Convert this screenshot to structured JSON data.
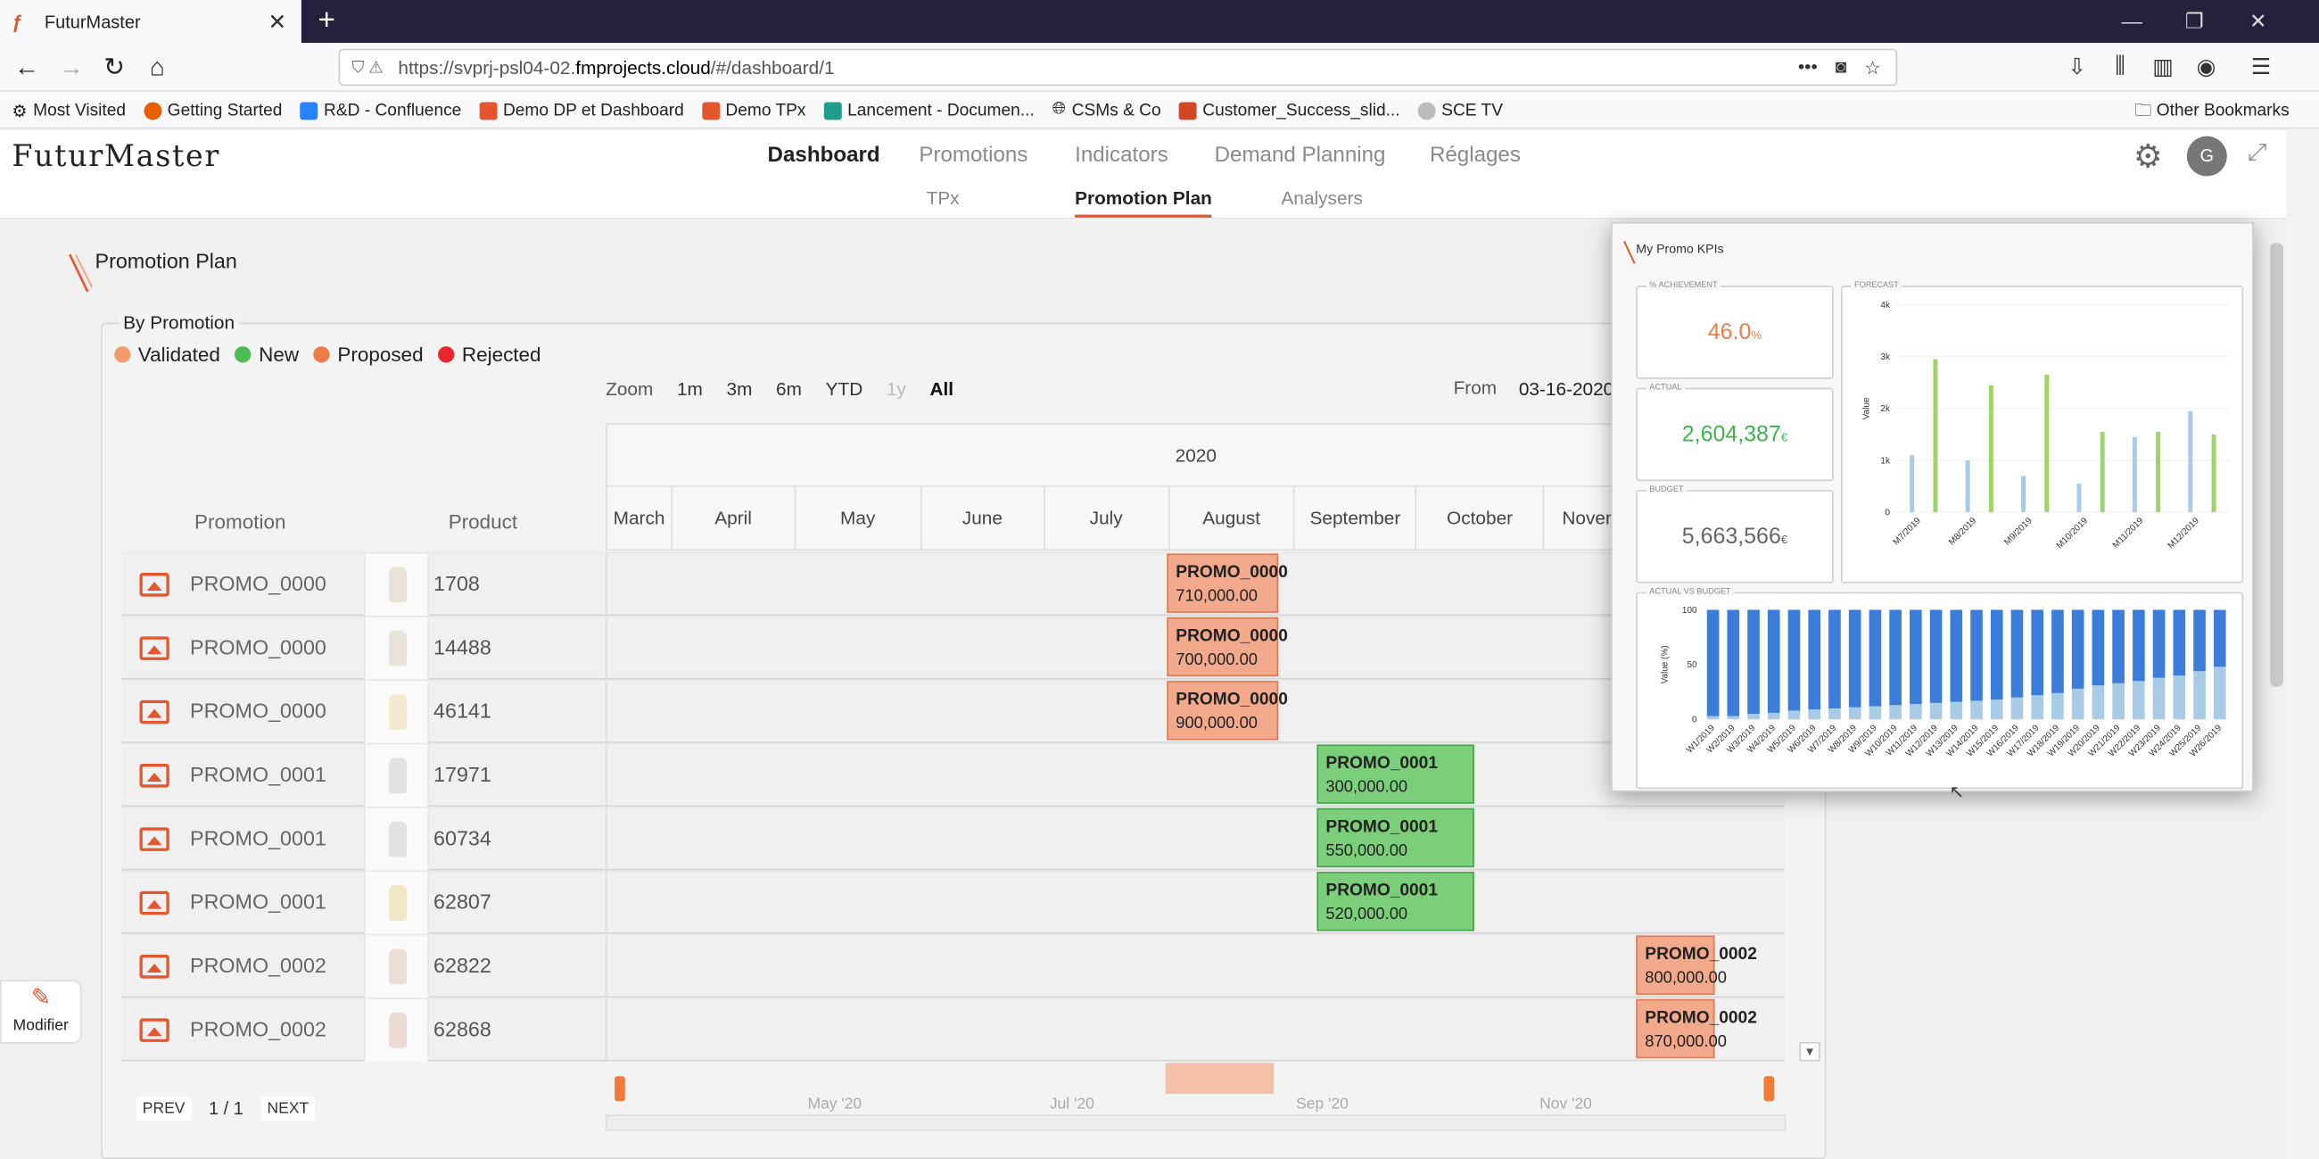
{
  "browser": {
    "tab_title": "FuturMaster",
    "url_prefix": "https://svprj-psl04-02.",
    "url_host": "fmprojects.cloud",
    "url_path": "/#/dashboard/1",
    "bookmarks": [
      "Most Visited",
      "Getting Started",
      "R&D - Confluence",
      "Demo DP et Dashboard",
      "Demo TPx",
      "Lancement - Documen...",
      "CSMs & Co",
      "Customer_Success_slid...",
      "SCE TV"
    ],
    "other_bookmarks": "Other Bookmarks"
  },
  "app": {
    "logo_prefix": "Futur",
    "logo_suffix": "Master",
    "nav": [
      "Dashboard",
      "Promotions",
      "Indicators",
      "Demand Planning",
      "Réglages"
    ],
    "active_nav": "Dashboard",
    "subnav": [
      "TPx",
      "Promotion Plan",
      "Analysers"
    ],
    "active_subnav": "Promotion Plan",
    "avatar": "G"
  },
  "plan": {
    "title": "Promotion Plan",
    "panel_title": "By Promotion",
    "legend": [
      {
        "label": "Validated",
        "color": "#f39c6b"
      },
      {
        "label": "New",
        "color": "#4cbb52"
      },
      {
        "label": "Proposed",
        "color": "#f07a4a"
      },
      {
        "label": "Rejected",
        "color": "#e8262b"
      }
    ],
    "zoom_label": "Zoom",
    "zoom": [
      "1m",
      "3m",
      "6m",
      "YTD",
      "1y",
      "All"
    ],
    "from_label": "From",
    "from_value": "03-16-2020",
    "col_promotion": "Promotion",
    "col_product": "Product",
    "year": "2020",
    "months": [
      "March",
      "April",
      "May",
      "June",
      "July",
      "August",
      "September",
      "October",
      "Nover"
    ],
    "rows": [
      {
        "promo": "PROMO_0000",
        "product": "1708"
      },
      {
        "promo": "PROMO_0000",
        "product": "14488"
      },
      {
        "promo": "PROMO_0000",
        "product": "46141"
      },
      {
        "promo": "PROMO_0001",
        "product": "17971"
      },
      {
        "promo": "PROMO_0001",
        "product": "60734"
      },
      {
        "promo": "PROMO_0001",
        "product": "62807"
      },
      {
        "promo": "PROMO_0002",
        "product": "62822"
      },
      {
        "promo": "PROMO_0002",
        "product": "62868"
      }
    ],
    "bars": [
      {
        "name": "PROMO_0000",
        "amount": "710,000.00",
        "status": "proposed"
      },
      {
        "name": "PROMO_0000",
        "amount": "700,000.00",
        "status": "proposed"
      },
      {
        "name": "PROMO_0000",
        "amount": "900,000.00",
        "status": "proposed"
      },
      {
        "name": "PROMO_0001",
        "amount": "300,000.00",
        "status": "new"
      },
      {
        "name": "PROMO_0001",
        "amount": "550,000.00",
        "status": "new"
      },
      {
        "name": "PROMO_0001",
        "amount": "520,000.00",
        "status": "new"
      },
      {
        "name": "PROMO_0002",
        "amount": "800,000.00",
        "status": "proposed"
      },
      {
        "name": "PROMO_0002",
        "amount": "870,000.00",
        "status": "proposed"
      }
    ],
    "navigator_labels": [
      "May '20",
      "Jul '20",
      "Sep '20",
      "Nov '20"
    ],
    "pager": {
      "prev": "PREV",
      "page": "1 / 1",
      "next": "NEXT"
    },
    "modifier": "Modifier"
  },
  "kpi": {
    "title": "My Promo KPIs",
    "achievement_label": "% ACHIEVEMENT",
    "achievement_value": "46.0",
    "achievement_unit": "%",
    "actual_label": "ACTUAL",
    "actual_value": "2,604,387",
    "actual_unit": "€",
    "budget_label": "BUDGET",
    "budget_value": "5,663,566",
    "budget_unit": "€",
    "colors": {
      "achievement": "#f07a4a",
      "actual": "#3db54a",
      "budget": "#666666"
    }
  },
  "chart_data": [
    {
      "type": "bar",
      "title": "FORECAST",
      "ylabel": "Value",
      "ylim": [
        0,
        4000
      ],
      "yticks": [
        "0",
        "1k",
        "2k",
        "3k",
        "4k"
      ],
      "categories": [
        "M7/2019",
        "M8/2019",
        "M9/2019",
        "M10/2019",
        "M11/2019",
        "M12/2019"
      ],
      "series": [
        {
          "color": "#a9cbe6",
          "values": [
            1100,
            1000,
            700,
            550,
            1450,
            1950
          ]
        },
        {
          "color": "#9fd46a",
          "values": [
            2950,
            2450,
            2650,
            1550,
            1550,
            1500
          ]
        }
      ]
    },
    {
      "type": "bar",
      "title": "ACTUAL VS BUDGET",
      "ylabel": "Value (%)",
      "ylim": [
        0,
        100
      ],
      "yticks": [
        "0",
        "50",
        "100"
      ],
      "categories": [
        "W1/2019",
        "W2/2019",
        "W3/2019",
        "W4/2019",
        "W5/2019",
        "W6/2019",
        "W7/2019",
        "W8/2019",
        "W9/2019",
        "W10/2019",
        "W11/2019",
        "W12/2019",
        "W13/2019",
        "W14/2019",
        "W15/2019",
        "W16/2019",
        "W17/2019",
        "W18/2019",
        "W19/2019",
        "W20/2019",
        "W21/2019",
        "W22/2019",
        "W23/2019",
        "W24/2019",
        "W25/2019",
        "W26/2019"
      ],
      "stacked": true,
      "series": [
        {
          "color": "#a9cbe6",
          "values": [
            3,
            3,
            5,
            6,
            8,
            9,
            10,
            11,
            12,
            13,
            14,
            15,
            16,
            17,
            18,
            20,
            22,
            24,
            28,
            31,
            33,
            35,
            38,
            40,
            44,
            48
          ]
        },
        {
          "color": "#3b7dd8",
          "values": [
            97,
            97,
            95,
            94,
            92,
            91,
            90,
            89,
            88,
            87,
            86,
            85,
            84,
            83,
            82,
            80,
            78,
            76,
            72,
            69,
            67,
            65,
            62,
            60,
            56,
            52
          ]
        }
      ]
    }
  ]
}
